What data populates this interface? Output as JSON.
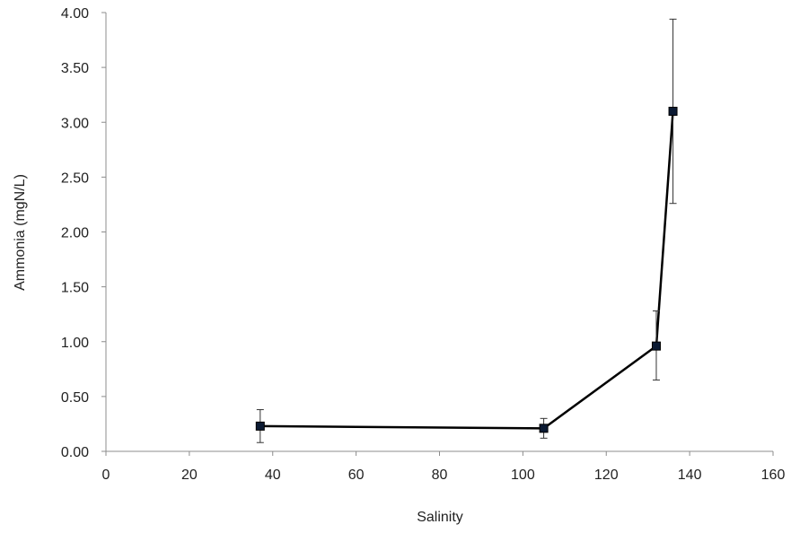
{
  "chart_data": {
    "type": "line",
    "title": "",
    "xlabel": "Salinity",
    "ylabel": "Ammonia (mgN/L)",
    "xlim": [
      0,
      160
    ],
    "ylim": [
      0,
      4
    ],
    "x_ticks": [
      "0",
      "20",
      "40",
      "60",
      "80",
      "100",
      "120",
      "140",
      "160"
    ],
    "y_ticks": [
      "0.00",
      "0.50",
      "1.00",
      "1.50",
      "2.00",
      "2.50",
      "3.00",
      "3.50",
      "4.00"
    ],
    "grid": false,
    "legend": "none",
    "series": [
      {
        "color": "#000000",
        "points": [
          {
            "x": 37,
            "y": 0.23,
            "err_low": 0.08,
            "err_high": 0.38
          },
          {
            "x": 105,
            "y": 0.21,
            "err_low": 0.12,
            "err_high": 0.3
          },
          {
            "x": 132,
            "y": 0.96,
            "err_low": 0.65,
            "err_high": 1.28
          },
          {
            "x": 136,
            "y": 3.1,
            "err_low": 2.26,
            "err_high": 3.94
          }
        ]
      }
    ]
  }
}
